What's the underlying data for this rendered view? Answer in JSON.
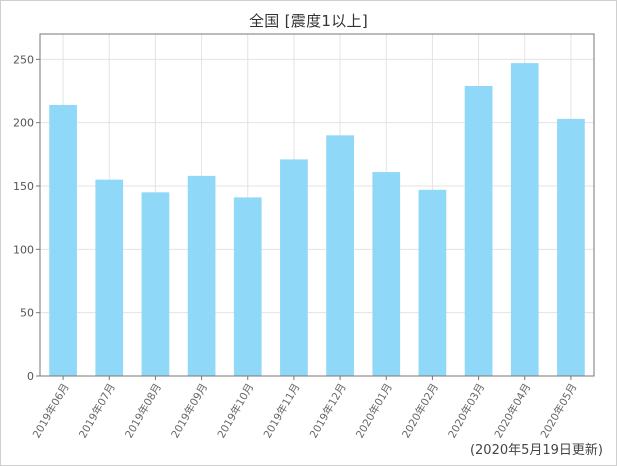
{
  "chart_data": {
    "type": "bar",
    "title": "全国 [震度1以上]",
    "categories": [
      "2019年06月",
      "2019年07月",
      "2019年08月",
      "2019年09月",
      "2019年10月",
      "2019年11月",
      "2019年12月",
      "2020年01月",
      "2020年02月",
      "2020年03月",
      "2020年04月",
      "2020年05月"
    ],
    "values": [
      214,
      155,
      145,
      158,
      141,
      171,
      190,
      161,
      147,
      229,
      247,
      203
    ],
    "xlabel": "",
    "ylabel": "",
    "ylim": [
      0,
      270
    ],
    "yticks": [
      0,
      50,
      100,
      150,
      200,
      250
    ],
    "grid": true,
    "bar_color": "#8fd8f7"
  },
  "footnote": "(2020年5月19日更新)"
}
